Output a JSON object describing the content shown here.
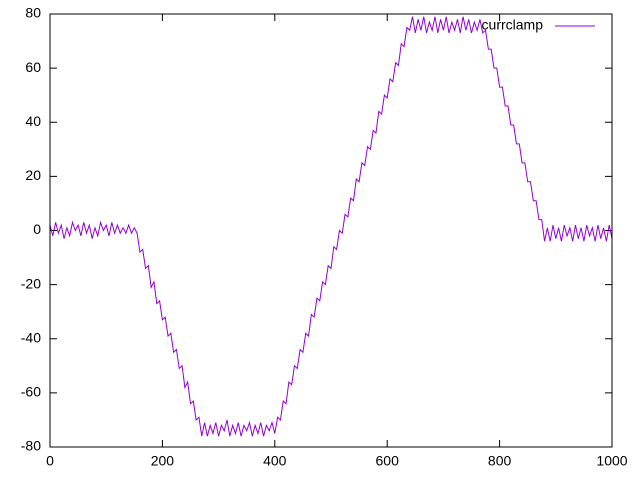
{
  "chart_data": {
    "type": "line",
    "x": [
      0,
      5,
      10,
      15,
      20,
      25,
      30,
      35,
      40,
      45,
      50,
      55,
      60,
      65,
      70,
      75,
      80,
      85,
      90,
      95,
      100,
      105,
      110,
      115,
      120,
      125,
      130,
      135,
      140,
      145,
      150,
      155,
      160,
      165,
      170,
      175,
      180,
      185,
      190,
      195,
      200,
      205,
      210,
      215,
      220,
      225,
      230,
      235,
      240,
      245,
      250,
      255,
      260,
      265,
      270,
      275,
      280,
      285,
      290,
      295,
      300,
      305,
      310,
      315,
      320,
      325,
      330,
      335,
      340,
      345,
      350,
      355,
      360,
      365,
      370,
      375,
      380,
      385,
      390,
      395,
      400,
      405,
      410,
      415,
      420,
      425,
      430,
      435,
      440,
      445,
      450,
      455,
      460,
      465,
      470,
      475,
      480,
      485,
      490,
      495,
      500,
      505,
      510,
      515,
      520,
      525,
      530,
      535,
      540,
      545,
      550,
      555,
      560,
      565,
      570,
      575,
      580,
      585,
      590,
      595,
      600,
      605,
      610,
      615,
      620,
      625,
      630,
      635,
      640,
      645,
      650,
      655,
      660,
      665,
      670,
      675,
      680,
      685,
      690,
      695,
      700,
      705,
      710,
      715,
      720,
      725,
      730,
      735,
      740,
      745,
      750,
      755,
      760,
      765,
      770,
      775,
      780,
      785,
      790,
      795,
      800,
      805,
      810,
      815,
      820,
      825,
      830,
      835,
      840,
      845,
      850,
      855,
      860,
      865,
      870,
      875,
      880,
      885,
      890,
      895,
      900,
      905,
      910,
      915,
      920,
      925,
      930,
      935,
      940,
      945,
      950,
      955,
      960,
      965,
      970,
      975,
      980,
      985,
      990,
      995,
      1000
    ],
    "series": [
      {
        "name": "currclamp",
        "color": "#9400d3",
        "values": [
          2,
          -2,
          3,
          -1,
          2,
          -3,
          1,
          -2,
          3,
          0,
          2,
          -2,
          3,
          -1,
          2,
          -3,
          1,
          -2,
          3,
          0,
          2,
          -2,
          3,
          -1,
          2,
          -1,
          1,
          -1,
          2,
          -1,
          1,
          -1,
          -8,
          -7,
          -14,
          -13,
          -21,
          -19,
          -27,
          -26,
          -33,
          -32,
          -39,
          -38,
          -45,
          -44,
          -51,
          -50,
          -58,
          -56,
          -64,
          -63,
          -70,
          -69,
          -76,
          -71,
          -76,
          -72,
          -75,
          -71,
          -76,
          -72,
          -74,
          -70,
          -76,
          -72,
          -75,
          -71,
          -76,
          -72,
          -74,
          -71,
          -76,
          -72,
          -75,
          -71,
          -76,
          -72,
          -74,
          -71,
          -75,
          -69,
          -70,
          -63,
          -64,
          -56,
          -57,
          -50,
          -51,
          -44,
          -45,
          -38,
          -39,
          -31,
          -32,
          -25,
          -26,
          -19,
          -20,
          -13,
          -14,
          -6,
          -7,
          0,
          -1,
          6,
          5,
          12,
          11,
          19,
          18,
          25,
          24,
          31,
          30,
          37,
          36,
          44,
          43,
          50,
          49,
          56,
          55,
          62,
          61,
          69,
          68,
          75,
          74,
          79,
          73,
          78,
          74,
          79,
          73,
          77,
          74,
          79,
          73,
          78,
          74,
          79,
          73,
          77,
          74,
          78,
          73,
          79,
          74,
          78,
          73,
          77,
          74,
          78,
          73,
          74,
          67,
          67,
          60,
          60,
          53,
          53,
          46,
          46,
          39,
          39,
          32,
          32,
          25,
          25,
          18,
          18,
          11,
          11,
          4,
          4,
          -4,
          1,
          -4,
          2,
          -3,
          1,
          -4,
          2,
          -2,
          1,
          -4,
          2,
          -3,
          1,
          -4,
          2,
          -2,
          1,
          -4,
          2,
          -3,
          1,
          -4,
          2,
          -3
        ]
      }
    ],
    "xlim": [
      0,
      1000
    ],
    "xticks": [
      0,
      200,
      400,
      600,
      800,
      1000
    ],
    "ylim": [
      -80,
      80
    ],
    "yticks": [
      -80,
      -60,
      -40,
      -20,
      0,
      20,
      40,
      60,
      80
    ],
    "legend": "top-right",
    "grid": false
  }
}
